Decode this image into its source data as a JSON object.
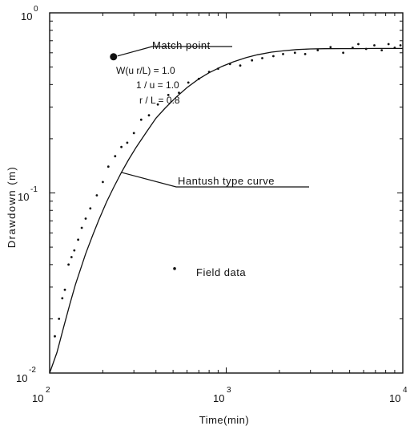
{
  "chart_data": {
    "type": "line",
    "xscale": "log",
    "yscale": "log",
    "xlim": [
      100,
      10000
    ],
    "ylim": [
      0.01,
      1
    ],
    "xlabel": "Time(min)",
    "ylabel": "Drawdown (m)",
    "x_ticks": [
      {
        "value": 100,
        "base": "10",
        "exp": "2"
      },
      {
        "value": 1000,
        "base": "10",
        "exp": "3"
      },
      {
        "value": 10000,
        "base": "10",
        "exp": "4"
      }
    ],
    "y_ticks": [
      {
        "value": 0.01,
        "base": "10",
        "exp": "-2"
      },
      {
        "value": 0.1,
        "base": "10",
        "exp": "-1"
      },
      {
        "value": 1,
        "base": "10",
        "exp": "0"
      }
    ],
    "match_point": {
      "x": 230,
      "y": 0.57,
      "label": "Match point",
      "params": [
        "W(u r/L) = 1.0",
        "1 / u = 1.0",
        "r / L = 0.8"
      ]
    },
    "curve_label": "Hantush type curve",
    "curve_label_anchor": {
      "x": 255,
      "y": 0.13
    },
    "field_data_label": "Field data",
    "field_data_marker": {
      "x": 510,
      "y": 0.038
    },
    "series": [
      {
        "kind": "curve",
        "x": [
          100,
          110,
          120,
          130,
          140,
          150,
          160,
          175,
          190,
          210,
          230,
          255,
          280,
          310,
          350,
          400,
          450,
          520,
          600,
          700,
          800,
          950,
          1100,
          1300,
          1500,
          1800,
          2100,
          2500,
          3000,
          3600,
          4500,
          5500,
          7000,
          8500,
          10000
        ],
        "y": [
          0.0085,
          0.013,
          0.018,
          0.024,
          0.031,
          0.038,
          0.046,
          0.058,
          0.071,
          0.089,
          0.107,
          0.13,
          0.153,
          0.18,
          0.215,
          0.26,
          0.295,
          0.34,
          0.385,
          0.43,
          0.465,
          0.505,
          0.535,
          0.565,
          0.585,
          0.605,
          0.615,
          0.625,
          0.63,
          0.632,
          0.633,
          0.633,
          0.634,
          0.634,
          0.634
        ]
      },
      {
        "kind": "field-data",
        "x": [
          107,
          113,
          118,
          122,
          128,
          133,
          138,
          145,
          152,
          160,
          170,
          185,
          200,
          215,
          235,
          255,
          275,
          300,
          330,
          365,
          410,
          470,
          540,
          610,
          700,
          800,
          900,
          1050,
          1200,
          1400,
          1600,
          1850,
          2100,
          2450,
          2800,
          3300,
          3900,
          4600,
          5200,
          5600,
          6200,
          6900,
          7600,
          8300,
          9000,
          9700
        ],
        "y": [
          0.016,
          0.02,
          0.026,
          0.029,
          0.04,
          0.044,
          0.048,
          0.055,
          0.064,
          0.072,
          0.082,
          0.097,
          0.115,
          0.14,
          0.16,
          0.18,
          0.19,
          0.215,
          0.255,
          0.27,
          0.31,
          0.35,
          0.36,
          0.41,
          0.43,
          0.47,
          0.49,
          0.52,
          0.51,
          0.545,
          0.56,
          0.575,
          0.59,
          0.6,
          0.59,
          0.62,
          0.645,
          0.6,
          0.64,
          0.67,
          0.63,
          0.66,
          0.62,
          0.67,
          0.64,
          0.66
        ]
      }
    ]
  }
}
